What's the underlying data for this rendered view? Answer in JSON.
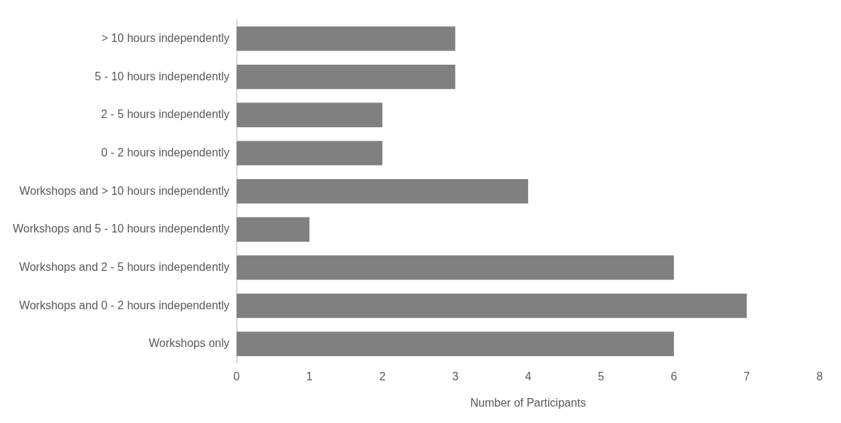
{
  "chart_data": {
    "type": "bar",
    "orientation": "horizontal",
    "xlabel": "Number of Participants",
    "categories": [
      "> 10 hours independently",
      "5 - 10 hours independently",
      "2 - 5 hours independently",
      "0 - 2 hours independently",
      "Workshops and > 10 hours independently",
      "Workshops and 5 - 10 hours independently",
      "Workshops and 2 - 5 hours independently",
      "Workshops and 0 - 2 hours independently",
      "Workshops only"
    ],
    "values": [
      3,
      3,
      2,
      2,
      4,
      1,
      6,
      7,
      6
    ],
    "color": "#808080",
    "xlim": [
      0,
      8
    ],
    "xticks": [
      0,
      1,
      2,
      3,
      4,
      5,
      6,
      7,
      8
    ]
  }
}
